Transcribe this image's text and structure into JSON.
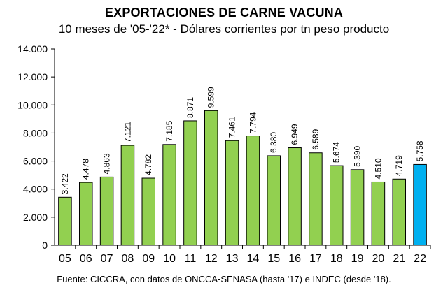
{
  "chart_data": {
    "type": "bar",
    "title": "EXPORTACIONES DE CARNE VACUNA",
    "subtitle": "10 meses de '05-'22* - Dólares corrientes por tn peso producto",
    "categories": [
      "05",
      "06",
      "07",
      "08",
      "09",
      "10",
      "11",
      "12",
      "13",
      "14",
      "15",
      "16",
      "17",
      "18",
      "19",
      "20",
      "21",
      "22"
    ],
    "values": [
      3422,
      4478,
      4863,
      7121,
      4782,
      7185,
      8871,
      9599,
      7461,
      7794,
      6380,
      6949,
      6589,
      5674,
      5390,
      4510,
      4719,
      5758
    ],
    "value_labels": [
      "3.422",
      "4.478",
      "4.863",
      "7.121",
      "4.782",
      "7.185",
      "8.871",
      "9.599",
      "7.461",
      "7.794",
      "6.380",
      "6.949",
      "6.589",
      "5.674",
      "5.390",
      "4.510",
      "4.719",
      "5.758"
    ],
    "ylim": [
      0,
      14000
    ],
    "yticks": [
      0,
      2000,
      4000,
      6000,
      8000,
      10000,
      12000,
      14000
    ],
    "ytick_labels": [
      "0",
      "2.000",
      "4.000",
      "6.000",
      "8.000",
      "10.000",
      "12.000",
      "14.000"
    ],
    "xlabel": "",
    "ylabel": "",
    "grid": false,
    "colors": {
      "bar": "#92d050",
      "highlight": "#00b0f0",
      "edge": "#000000"
    },
    "highlight_index": 17
  },
  "source_note": "Fuente: CICCRA, con datos de ONCCA-SENASA (hasta '17) e INDEC (desde '18)."
}
